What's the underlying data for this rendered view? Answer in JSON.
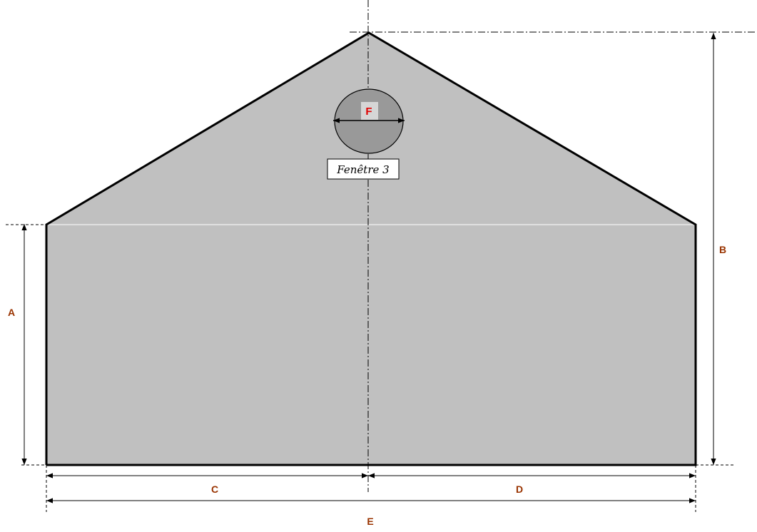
{
  "diagram": {
    "colors": {
      "wall_fill": "#c0c0c0",
      "window_fill": "#999999",
      "window_letter_bg": "#d6d6d6",
      "dimension_label": "#993300",
      "window_letter": "#e00000",
      "outline": "#000000"
    },
    "dimensions": {
      "a": "A",
      "b": "B",
      "c": "C",
      "d": "D",
      "e": "E"
    },
    "window": {
      "letter": "F",
      "label": "Fenêtre 3"
    }
  }
}
